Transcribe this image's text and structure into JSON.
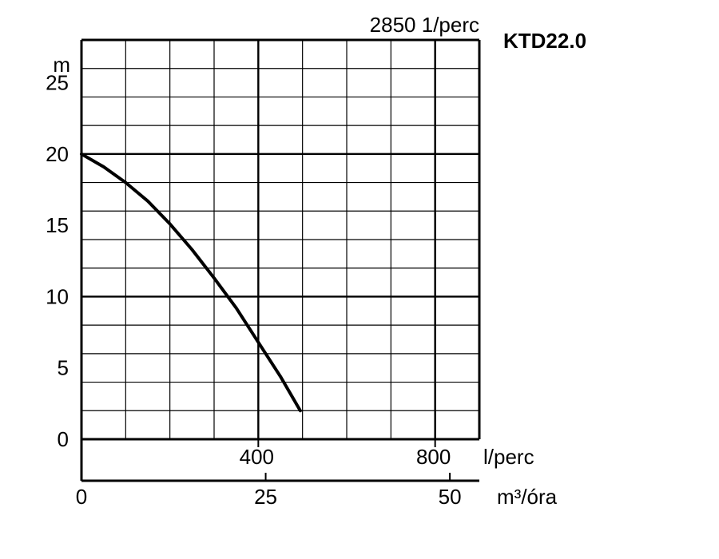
{
  "chart_data": {
    "type": "line",
    "title": "KTD22.0",
    "speed_label": "2850 1/perc",
    "ylabel": "m",
    "xlabel_primary": "l/perc",
    "xlabel_secondary": "m³/óra",
    "ylim": [
      0,
      28
    ],
    "xlim": [
      0,
      900
    ],
    "secondary_xlim": [
      0,
      54
    ],
    "y_ticks": [
      0,
      5,
      10,
      15,
      20,
      25
    ],
    "y_tick_labels": [
      "0",
      "5",
      "10",
      "15",
      "20",
      "25"
    ],
    "x_ticks": [
      400,
      800
    ],
    "x_tick_labels": [
      "400",
      "800"
    ],
    "secondary_x_ticks": [
      0,
      25,
      50
    ],
    "secondary_x_tick_labels": [
      "0",
      "25",
      "50"
    ],
    "grid": true,
    "series": [
      {
        "x": [
          0,
          50,
          100,
          150,
          200,
          250,
          300,
          350,
          400,
          450,
          495
        ],
        "y": [
          20.0,
          19.1,
          18.0,
          16.7,
          15.1,
          13.3,
          11.3,
          9.2,
          6.8,
          4.4,
          2.0
        ]
      }
    ]
  }
}
